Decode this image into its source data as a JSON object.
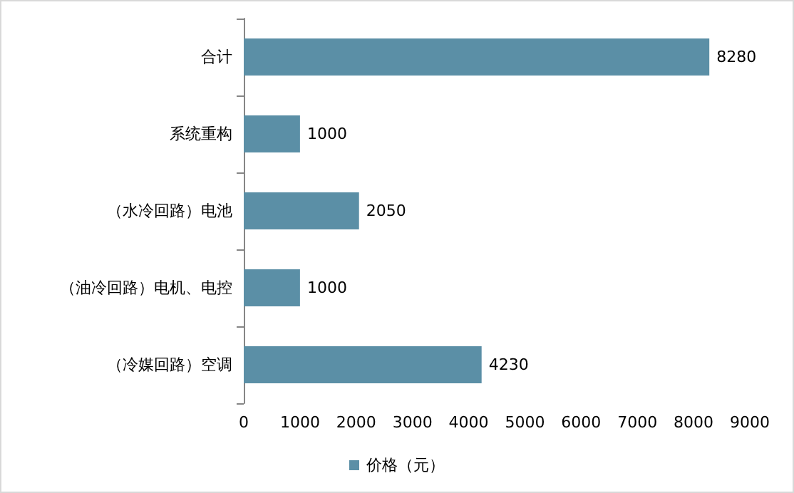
{
  "chart_data": {
    "type": "bar",
    "orientation": "horizontal",
    "categories": [
      "合计",
      "系统重构",
      "（水冷回路）电池",
      "（油冷回路）电机、电控",
      "（冷媒回路）空调"
    ],
    "series": [
      {
        "name": "价格（元）",
        "color": "#5b8fa6",
        "values": [
          8280,
          1000,
          2050,
          1000,
          4230
        ]
      }
    ],
    "xlim": [
      0,
      9000
    ],
    "xticks": [
      0,
      1000,
      2000,
      3000,
      4000,
      5000,
      6000,
      7000,
      8000,
      9000
    ],
    "data_labels": true,
    "legend": "bottom",
    "grid": false
  }
}
